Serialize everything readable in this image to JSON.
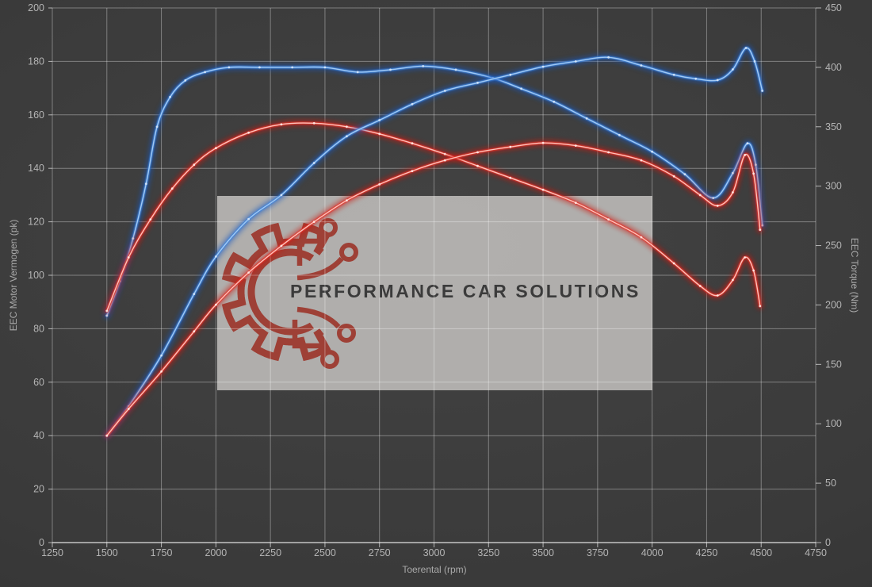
{
  "watermark": {
    "text": "PERFORMANCE CAR SOLUTIONS"
  },
  "colors": {
    "background": "#3a3a3a",
    "grid": "rgba(255,255,255,0.35)",
    "axis_line": "rgba(255,255,255,0.62)",
    "tick_label": "#b4b4b4",
    "watermark_box": "rgba(201,199,196,0.82)",
    "logo_red": "#9e4036",
    "logo_text": "#3b3b3b",
    "blue": "#3e84dc",
    "red": "#e2352b"
  },
  "chart_data": {
    "type": "line",
    "title": "",
    "legend": "none",
    "grid": true,
    "x_axis": {
      "label": "Toerental (rpm)",
      "min": 1250,
      "max": 4750,
      "ticks": [
        1250,
        1500,
        1750,
        2000,
        2250,
        2500,
        2750,
        3000,
        3250,
        3500,
        3750,
        4000,
        4250,
        4500,
        4750
      ]
    },
    "y_left": {
      "label": "EEC Motor Vermogen (pk)",
      "min": 0,
      "max": 200,
      "ticks": [
        0,
        20,
        40,
        60,
        80,
        100,
        120,
        140,
        160,
        180,
        200
      ]
    },
    "y_right": {
      "label": "EEC Torque (Nm)",
      "min": 0,
      "max": 450,
      "ticks": [
        0,
        50,
        100,
        150,
        200,
        250,
        300,
        350,
        400,
        450
      ]
    },
    "series": [
      {
        "name": "torque-blue-tuned",
        "axis": "right",
        "unit": "Nm",
        "color": "#3e84dc",
        "glow": "#1857c0",
        "core": "#a8cdf5",
        "marker": "#d5e6fa",
        "points": [
          [
            1500,
            191
          ],
          [
            1560,
            220
          ],
          [
            1620,
            256
          ],
          [
            1680,
            302
          ],
          [
            1730,
            350
          ],
          [
            1790,
            375
          ],
          [
            1860,
            389
          ],
          [
            1950,
            396
          ],
          [
            2060,
            400
          ],
          [
            2200,
            400
          ],
          [
            2350,
            400
          ],
          [
            2500,
            400
          ],
          [
            2650,
            396
          ],
          [
            2800,
            398
          ],
          [
            2950,
            401
          ],
          [
            3100,
            398
          ],
          [
            3270,
            391
          ],
          [
            3400,
            382
          ],
          [
            3550,
            371
          ],
          [
            3700,
            357
          ],
          [
            3850,
            343
          ],
          [
            4000,
            329
          ],
          [
            4150,
            310
          ],
          [
            4280,
            290
          ],
          [
            4370,
            311
          ],
          [
            4437,
            336
          ],
          [
            4475,
            318
          ],
          [
            4505,
            267
          ]
        ]
      },
      {
        "name": "torque-red-original",
        "axis": "right",
        "unit": "Nm",
        "color": "#e2352b",
        "glow": "#cc120c",
        "core": "#ffc9c2",
        "marker": "#ffe9e5",
        "points": [
          [
            1500,
            195
          ],
          [
            1600,
            240
          ],
          [
            1700,
            272
          ],
          [
            1800,
            298
          ],
          [
            1900,
            318
          ],
          [
            2000,
            332
          ],
          [
            2150,
            345
          ],
          [
            2300,
            352
          ],
          [
            2450,
            353
          ],
          [
            2600,
            350
          ],
          [
            2750,
            344
          ],
          [
            2900,
            336
          ],
          [
            3050,
            327
          ],
          [
            3200,
            317
          ],
          [
            3350,
            307
          ],
          [
            3500,
            297
          ],
          [
            3650,
            286
          ],
          [
            3800,
            272
          ],
          [
            3950,
            257
          ],
          [
            4100,
            235
          ],
          [
            4220,
            216
          ],
          [
            4300,
            208
          ],
          [
            4370,
            221
          ],
          [
            4425,
            240
          ],
          [
            4465,
            229
          ],
          [
            4495,
            199
          ]
        ]
      },
      {
        "name": "power-blue-tuned",
        "axis": "left",
        "unit": "pk",
        "color": "#3e84dc",
        "glow": "#1857c0",
        "core": "#a8cdf5",
        "marker": "#d5e6fa",
        "points": [
          [
            1500,
            40
          ],
          [
            1600,
            51
          ],
          [
            1750,
            70
          ],
          [
            1900,
            93
          ],
          [
            2000,
            107
          ],
          [
            2150,
            121
          ],
          [
            2300,
            130
          ],
          [
            2450,
            142
          ],
          [
            2600,
            152
          ],
          [
            2750,
            158
          ],
          [
            2900,
            164
          ],
          [
            3050,
            169
          ],
          [
            3200,
            172
          ],
          [
            3350,
            175
          ],
          [
            3500,
            178
          ],
          [
            3650,
            180
          ],
          [
            3800,
            181.5
          ],
          [
            3950,
            178.5
          ],
          [
            4100,
            175
          ],
          [
            4200,
            173.5
          ],
          [
            4300,
            173
          ],
          [
            4370,
            177
          ],
          [
            4430,
            185
          ],
          [
            4470,
            180
          ],
          [
            4505,
            169
          ]
        ]
      },
      {
        "name": "power-red-original",
        "axis": "left",
        "unit": "pk",
        "color": "#e2352b",
        "glow": "#cc120c",
        "core": "#ffc9c2",
        "marker": "#ffe9e5",
        "points": [
          [
            1500,
            40
          ],
          [
            1600,
            50
          ],
          [
            1750,
            64
          ],
          [
            1900,
            79
          ],
          [
            2000,
            89
          ],
          [
            2150,
            101
          ],
          [
            2300,
            111
          ],
          [
            2450,
            120
          ],
          [
            2600,
            128
          ],
          [
            2750,
            134
          ],
          [
            2900,
            139
          ],
          [
            3050,
            143
          ],
          [
            3200,
            146
          ],
          [
            3350,
            148
          ],
          [
            3500,
            149.5
          ],
          [
            3650,
            148.5
          ],
          [
            3800,
            146
          ],
          [
            3950,
            143
          ],
          [
            4100,
            137
          ],
          [
            4220,
            130
          ],
          [
            4300,
            126
          ],
          [
            4370,
            131
          ],
          [
            4425,
            145
          ],
          [
            4465,
            138
          ],
          [
            4495,
            117
          ]
        ]
      }
    ]
  }
}
